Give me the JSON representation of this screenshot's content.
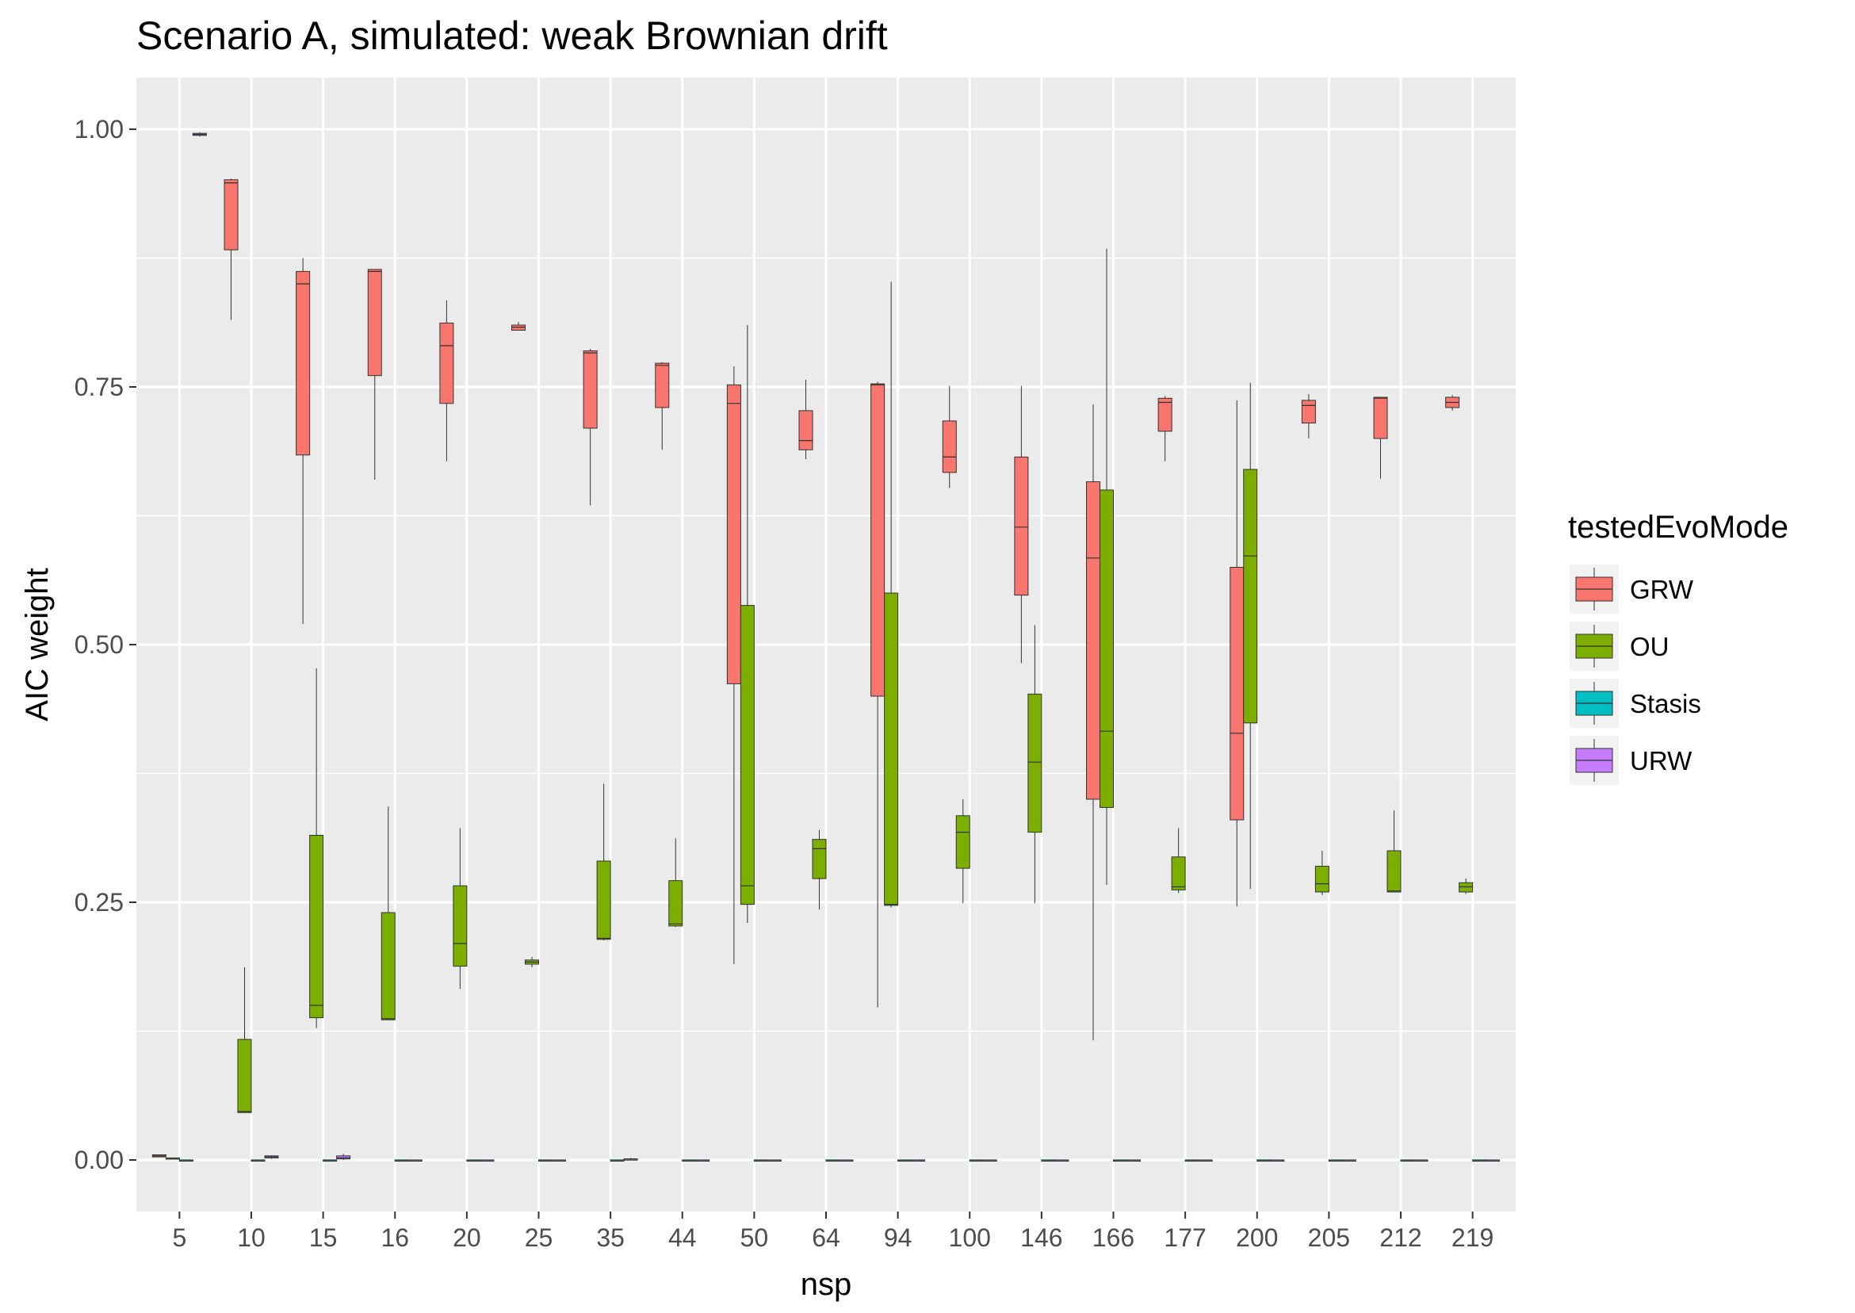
{
  "chart_data": {
    "type": "boxplot",
    "title": "Scenario A, simulated: weak Brownian drift",
    "xlabel": "nsp",
    "ylabel": "AIC weight",
    "ylim": [
      -0.05,
      1.05
    ],
    "y_ticks": [
      "0.00",
      "0.25",
      "0.50",
      "0.75",
      "1.00"
    ],
    "categories": [
      "5",
      "10",
      "15",
      "16",
      "20",
      "25",
      "35",
      "44",
      "50",
      "64",
      "94",
      "100",
      "146",
      "166",
      "177",
      "200",
      "205",
      "212",
      "219"
    ],
    "legend": {
      "title": "testedEvoMode",
      "position": "right"
    },
    "series": [
      {
        "name": "GRW",
        "color": "#F8766D",
        "boxes": [
          {
            "min": 0.003,
            "q1": 0.003,
            "median": 0.004,
            "q3": 0.005,
            "max": 0.005
          },
          {
            "min": 0.815,
            "q1": 0.883,
            "median": 0.948,
            "q3": 0.951,
            "max": 0.952
          },
          {
            "min": 0.52,
            "q1": 0.684,
            "median": 0.85,
            "q3": 0.862,
            "max": 0.875
          },
          {
            "min": 0.66,
            "q1": 0.761,
            "median": 0.862,
            "q3": 0.864,
            "max": 0.864
          },
          {
            "min": 0.678,
            "q1": 0.734,
            "median": 0.79,
            "q3": 0.812,
            "max": 0.834
          },
          {
            "min": 0.805,
            "q1": 0.805,
            "median": 0.808,
            "q3": 0.81,
            "max": 0.813
          },
          {
            "min": 0.635,
            "q1": 0.71,
            "median": 0.783,
            "q3": 0.785,
            "max": 0.787
          },
          {
            "min": 0.689,
            "q1": 0.73,
            "median": 0.771,
            "q3": 0.773,
            "max": 0.774
          },
          {
            "min": 0.19,
            "q1": 0.462,
            "median": 0.734,
            "q3": 0.752,
            "max": 0.77
          },
          {
            "min": 0.68,
            "q1": 0.689,
            "median": 0.698,
            "q3": 0.727,
            "max": 0.757
          },
          {
            "min": 0.148,
            "q1": 0.45,
            "median": 0.752,
            "q3": 0.753,
            "max": 0.755
          },
          {
            "min": 0.652,
            "q1": 0.667,
            "median": 0.682,
            "q3": 0.717,
            "max": 0.751
          },
          {
            "min": 0.482,
            "q1": 0.548,
            "median": 0.614,
            "q3": 0.682,
            "max": 0.751
          },
          {
            "min": 0.116,
            "q1": 0.35,
            "median": 0.584,
            "q3": 0.658,
            "max": 0.733
          },
          {
            "min": 0.678,
            "q1": 0.707,
            "median": 0.735,
            "q3": 0.739,
            "max": 0.741
          },
          {
            "min": 0.246,
            "q1": 0.33,
            "median": 0.414,
            "q3": 0.575,
            "max": 0.737
          },
          {
            "min": 0.7,
            "q1": 0.715,
            "median": 0.732,
            "q3": 0.737,
            "max": 0.743
          },
          {
            "min": 0.661,
            "q1": 0.7,
            "median": 0.739,
            "q3": 0.74,
            "max": 0.74
          },
          {
            "min": 0.727,
            "q1": 0.73,
            "median": 0.735,
            "q3": 0.74,
            "max": 0.742
          }
        ]
      },
      {
        "name": "OU",
        "color": "#7CAE00",
        "boxes": [
          {
            "min": 0.001,
            "q1": 0.001,
            "median": 0.001,
            "q3": 0.002,
            "max": 0.002
          },
          {
            "min": 0.046,
            "q1": 0.046,
            "median": 0.047,
            "q3": 0.117,
            "max": 0.187
          },
          {
            "min": 0.128,
            "q1": 0.138,
            "median": 0.15,
            "q3": 0.315,
            "max": 0.477
          },
          {
            "min": 0.136,
            "q1": 0.136,
            "median": 0.137,
            "q3": 0.24,
            "max": 0.343
          },
          {
            "min": 0.166,
            "q1": 0.188,
            "median": 0.21,
            "q3": 0.266,
            "max": 0.322
          },
          {
            "min": 0.187,
            "q1": 0.19,
            "median": 0.192,
            "q3": 0.194,
            "max": 0.197
          },
          {
            "min": 0.213,
            "q1": 0.214,
            "median": 0.215,
            "q3": 0.29,
            "max": 0.365
          },
          {
            "min": 0.226,
            "q1": 0.227,
            "median": 0.229,
            "q3": 0.271,
            "max": 0.312
          },
          {
            "min": 0.23,
            "q1": 0.248,
            "median": 0.266,
            "q3": 0.538,
            "max": 0.81
          },
          {
            "min": 0.243,
            "q1": 0.273,
            "median": 0.302,
            "q3": 0.311,
            "max": 0.32
          },
          {
            "min": 0.245,
            "q1": 0.247,
            "median": 0.248,
            "q3": 0.55,
            "max": 0.852
          },
          {
            "min": 0.249,
            "q1": 0.283,
            "median": 0.318,
            "q3": 0.334,
            "max": 0.35
          },
          {
            "min": 0.249,
            "q1": 0.318,
            "median": 0.386,
            "q3": 0.452,
            "max": 0.519
          },
          {
            "min": 0.267,
            "q1": 0.342,
            "median": 0.416,
            "q3": 0.65,
            "max": 0.884
          },
          {
            "min": 0.259,
            "q1": 0.262,
            "median": 0.265,
            "q3": 0.294,
            "max": 0.322
          },
          {
            "min": 0.263,
            "q1": 0.424,
            "median": 0.586,
            "q3": 0.67,
            "max": 0.754
          },
          {
            "min": 0.257,
            "q1": 0.26,
            "median": 0.268,
            "q3": 0.285,
            "max": 0.3
          },
          {
            "min": 0.26,
            "q1": 0.26,
            "median": 0.261,
            "q3": 0.3,
            "max": 0.339
          },
          {
            "min": 0.258,
            "q1": 0.26,
            "median": 0.265,
            "q3": 0.269,
            "max": 0.273
          }
        ]
      },
      {
        "name": "Stasis",
        "color": "#00BFC4",
        "boxes": [
          {
            "min": 0,
            "q1": 0,
            "median": 0,
            "q3": 0,
            "max": 0
          },
          {
            "min": 0,
            "q1": 0,
            "median": 0,
            "q3": 0,
            "max": 0
          },
          {
            "min": 0,
            "q1": 0,
            "median": 0,
            "q3": 0,
            "max": 0
          },
          {
            "min": 0,
            "q1": 0,
            "median": 0,
            "q3": 0,
            "max": 0
          },
          {
            "min": 0,
            "q1": 0,
            "median": 0,
            "q3": 0,
            "max": 0
          },
          {
            "min": 0,
            "q1": 0,
            "median": 0,
            "q3": 0,
            "max": 0
          },
          {
            "min": 0,
            "q1": 0,
            "median": 0,
            "q3": 0,
            "max": 0
          },
          {
            "min": 0,
            "q1": 0,
            "median": 0,
            "q3": 0,
            "max": 0
          },
          {
            "min": 0,
            "q1": 0,
            "median": 0,
            "q3": 0,
            "max": 0
          },
          {
            "min": 0,
            "q1": 0,
            "median": 0,
            "q3": 0,
            "max": 0
          },
          {
            "min": 0,
            "q1": 0,
            "median": 0,
            "q3": 0,
            "max": 0
          },
          {
            "min": 0,
            "q1": 0,
            "median": 0,
            "q3": 0,
            "max": 0
          },
          {
            "min": 0,
            "q1": 0,
            "median": 0,
            "q3": 0,
            "max": 0
          },
          {
            "min": 0,
            "q1": 0,
            "median": 0,
            "q3": 0,
            "max": 0
          },
          {
            "min": 0,
            "q1": 0,
            "median": 0,
            "q3": 0,
            "max": 0
          },
          {
            "min": 0,
            "q1": 0,
            "median": 0,
            "q3": 0,
            "max": 0
          },
          {
            "min": 0,
            "q1": 0,
            "median": 0,
            "q3": 0,
            "max": 0
          },
          {
            "min": 0,
            "q1": 0,
            "median": 0,
            "q3": 0,
            "max": 0
          },
          {
            "min": 0,
            "q1": 0,
            "median": 0,
            "q3": 0,
            "max": 0
          }
        ]
      },
      {
        "name": "URW",
        "color": "#C77CFF",
        "boxes": [
          {
            "min": 0.993,
            "q1": 0.994,
            "median": 0.995,
            "q3": 0.996,
            "max": 0.997
          },
          {
            "min": 0.001,
            "q1": 0.002,
            "median": 0.003,
            "q3": 0.004,
            "max": 0.004
          },
          {
            "min": 0,
            "q1": 0.001,
            "median": 0.002,
            "q3": 0.004,
            "max": 0.006
          },
          {
            "min": 0,
            "q1": 0,
            "median": 0,
            "q3": 0,
            "max": 0
          },
          {
            "min": 0,
            "q1": 0,
            "median": 0,
            "q3": 0,
            "max": 0
          },
          {
            "min": 0,
            "q1": 0,
            "median": 0,
            "q3": 0,
            "max": 0
          },
          {
            "min": 0,
            "q1": 0.001,
            "median": 0.001,
            "q3": 0.001,
            "max": 0.002
          },
          {
            "min": 0,
            "q1": 0,
            "median": 0,
            "q3": 0,
            "max": 0
          },
          {
            "min": 0,
            "q1": 0,
            "median": 0,
            "q3": 0,
            "max": 0
          },
          {
            "min": 0,
            "q1": 0,
            "median": 0,
            "q3": 0,
            "max": 0
          },
          {
            "min": 0,
            "q1": 0,
            "median": 0,
            "q3": 0,
            "max": 0
          },
          {
            "min": 0,
            "q1": 0,
            "median": 0,
            "q3": 0,
            "max": 0
          },
          {
            "min": 0,
            "q1": 0,
            "median": 0,
            "q3": 0,
            "max": 0
          },
          {
            "min": 0,
            "q1": 0,
            "median": 0,
            "q3": 0,
            "max": 0
          },
          {
            "min": 0,
            "q1": 0,
            "median": 0,
            "q3": 0,
            "max": 0
          },
          {
            "min": 0,
            "q1": 0,
            "median": 0,
            "q3": 0,
            "max": 0
          },
          {
            "min": 0,
            "q1": 0,
            "median": 0,
            "q3": 0,
            "max": 0
          },
          {
            "min": 0,
            "q1": 0,
            "median": 0,
            "q3": 0,
            "max": 0
          },
          {
            "min": 0,
            "q1": 0,
            "median": 0,
            "q3": 0,
            "max": 0
          }
        ]
      }
    ]
  }
}
